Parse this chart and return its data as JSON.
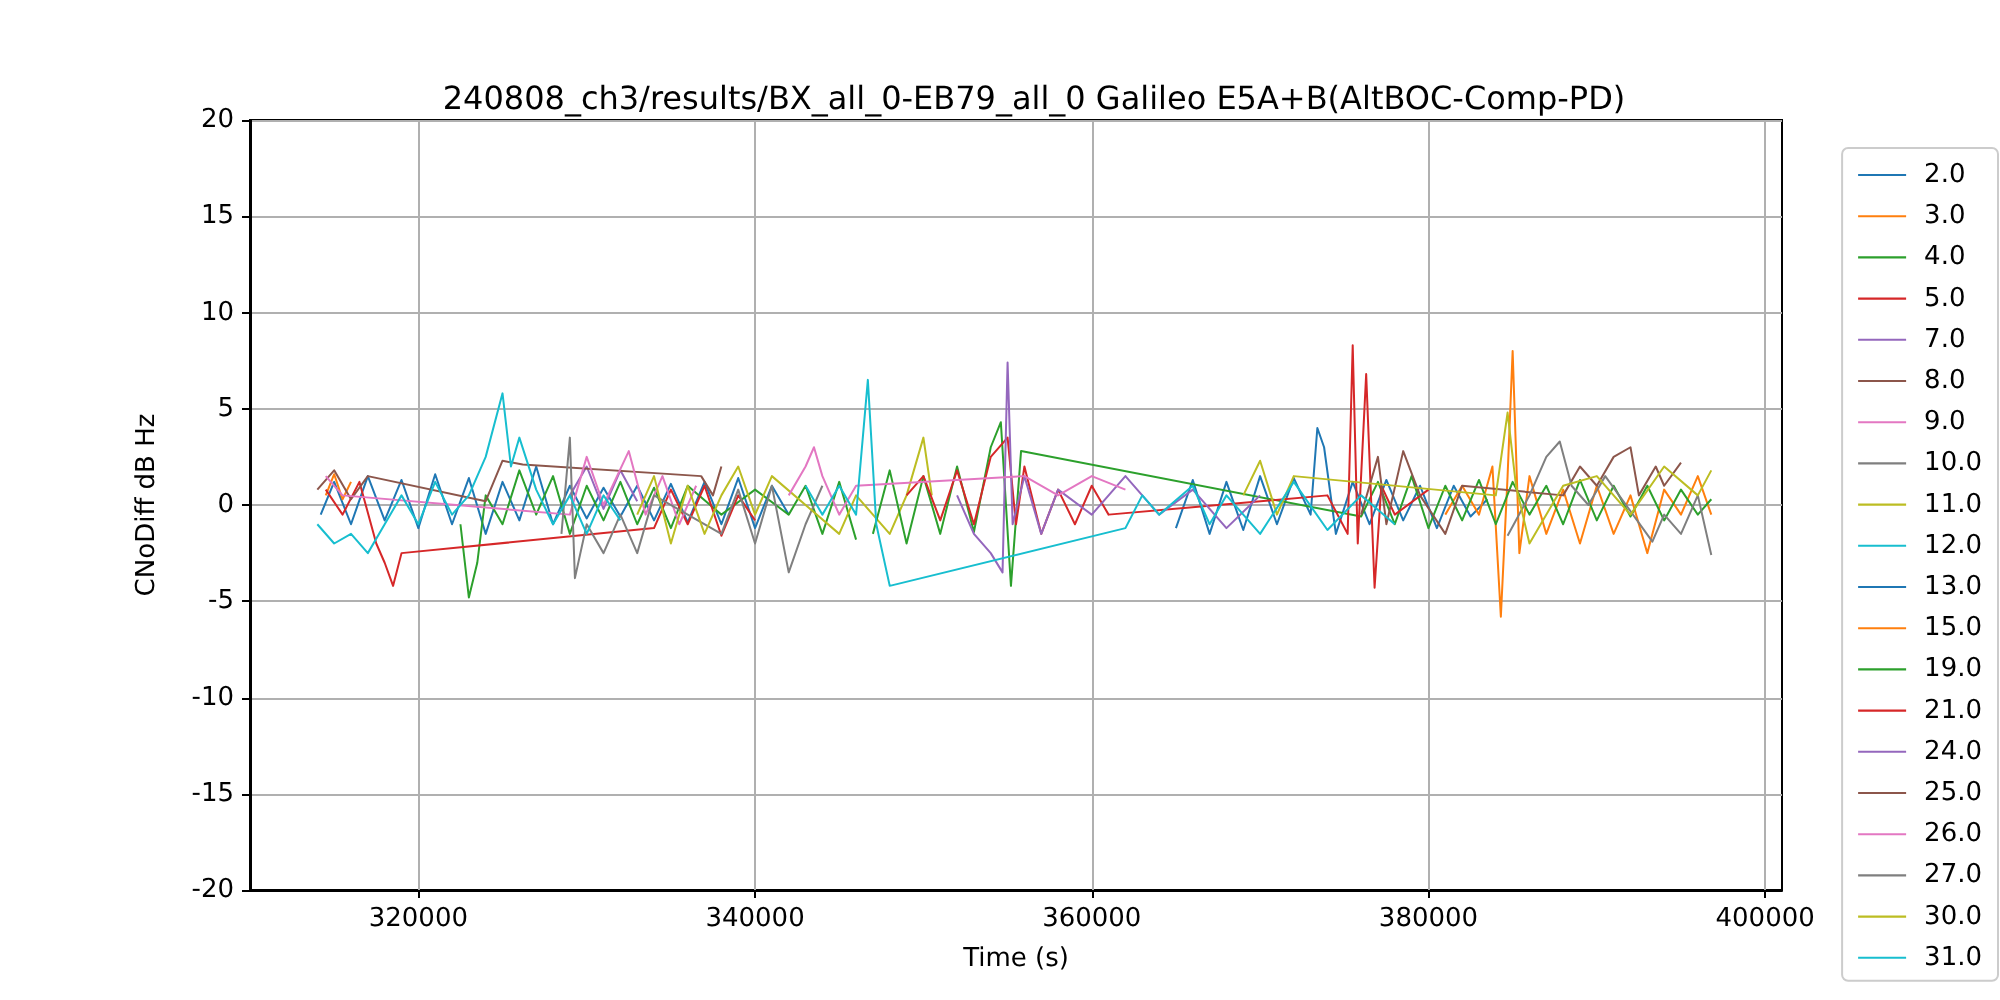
{
  "chart_data": {
    "type": "line",
    "title": "240808_ch3/results/BX_all_0-EB79_all_0 Galileo E5A+B(AltBOC-Comp-PD)",
    "xlabel": "Time (s)",
    "ylabel": "CNoDiff dB Hz",
    "xlim": [
      310000,
      401000
    ],
    "ylim": [
      -20,
      20
    ],
    "xticks": [
      320000,
      340000,
      360000,
      380000,
      400000
    ],
    "yticks": [
      -20,
      -15,
      -10,
      -5,
      0,
      5,
      10,
      15,
      20
    ],
    "grid": true,
    "legend": "right",
    "marker": "none",
    "series": [
      {
        "name": "2.0",
        "color": "#1f77b4",
        "x": [
          314200,
          315000,
          316000,
          317000,
          318000,
          319000,
          320000,
          321000,
          322000,
          323000,
          324000,
          325000,
          326000,
          327000,
          328000,
          329000,
          330000,
          331000,
          332000,
          333000,
          334000,
          335000,
          336000,
          337000,
          338000,
          339000,
          340000,
          341000,
          342000
        ],
        "values": [
          -0.5,
          1.2,
          -1.0,
          1.5,
          -0.8,
          1.3,
          -1.2,
          1.6,
          -1.0,
          1.4,
          -1.5,
          1.2,
          -0.8,
          2.0,
          -1.0,
          1.0,
          -0.7,
          0.9,
          -0.6,
          1.0,
          -0.8,
          1.1,
          -0.9,
          1.2,
          -1.0,
          1.4,
          -1.2,
          1.0,
          -0.5
        ]
      },
      {
        "name": "3.0",
        "color": "#ff7f0e",
        "x": [
          314500,
          315000,
          315500,
          316000
        ],
        "values": [
          0.5,
          1.6,
          0.3,
          1.2
        ]
      },
      {
        "name": "4.0",
        "color": "#2ca02c",
        "x": [
          322500,
          323000,
          323500,
          324000,
          325000,
          326000,
          327000,
          328000,
          329000,
          330000,
          331000,
          332000,
          333000,
          334000,
          335000,
          336000,
          338000,
          340000,
          342000,
          343000,
          344000,
          345000,
          346000
        ],
        "values": [
          -1.0,
          -4.8,
          -3.0,
          0.5,
          -1.0,
          1.8,
          -0.5,
          1.5,
          -1.5,
          1.0,
          -0.8,
          1.2,
          -1.0,
          0.9,
          -1.2,
          1.0,
          -0.5,
          0.8,
          -0.5,
          1.0,
          -1.5,
          1.2,
          -1.8
        ]
      },
      {
        "name": "5.0",
        "color": "#d62728",
        "x": [
          314500,
          315500,
          316500,
          317500,
          318000,
          318500,
          319000,
          334000,
          335000,
          336000,
          337000,
          338000,
          339000,
          340000
        ],
        "values": [
          0.8,
          -0.5,
          1.2,
          -2.0,
          -3.0,
          -4.2,
          -2.5,
          -1.2,
          0.8,
          -1.0,
          1.0,
          -1.6,
          0.5,
          -0.8
        ]
      },
      {
        "name": "7.0",
        "color": "#9467bd",
        "x": [
          329000,
          330000,
          331000,
          332000,
          333000
        ],
        "values": [
          0.5,
          2.0,
          -0.2,
          1.8,
          0.2
        ]
      },
      {
        "name": "8.0",
        "color": "#8c564b",
        "x": [
          314000,
          315000,
          316000,
          317000,
          324000,
          325000,
          326200,
          336800,
          337500,
          338000
        ],
        "values": [
          0.8,
          1.8,
          0.3,
          1.5,
          0.2,
          2.3,
          2.1,
          1.5,
          0.5,
          2.0
        ]
      },
      {
        "name": "9.0",
        "color": "#e377c2",
        "x": [
          314500,
          315500,
          329000,
          330000,
          331000,
          332500,
          333500,
          334500,
          335500,
          336500
        ],
        "values": [
          1.5,
          0.5,
          -0.5,
          2.5,
          0.0,
          2.8,
          -0.5,
          1.5,
          -1.0,
          1.0
        ]
      },
      {
        "name": "10.0",
        "color": "#7f7f7f",
        "x": [
          328500,
          329000,
          329300,
          330000,
          331000,
          332000,
          333000,
          334000,
          338000,
          339000,
          340000,
          341000,
          342000,
          343000,
          344000
        ],
        "values": [
          -1.5,
          3.5,
          -3.8,
          -1.0,
          -2.5,
          -0.5,
          -2.5,
          0.5,
          -1.5,
          0.8,
          -2.0,
          1.0,
          -3.5,
          -1.0,
          1.0
        ]
      },
      {
        "name": "11.0",
        "color": "#bcbd22",
        "x": [
          333000,
          334000,
          335000,
          336000,
          337000,
          338000,
          339000,
          340000,
          341000,
          345000,
          346000,
          348000,
          349000,
          350000,
          350500
        ],
        "values": [
          -0.5,
          1.5,
          -2.0,
          1.0,
          -1.5,
          0.5,
          2.0,
          -0.5,
          1.5,
          -1.5,
          0.5,
          -1.5,
          0.5,
          3.5,
          0.5
        ]
      },
      {
        "name": "12.0",
        "color": "#17becf",
        "x": [
          314000,
          315000,
          316000,
          317000,
          318000,
          319000,
          320000,
          321000,
          322000,
          323000,
          324000,
          325000,
          325500,
          326000,
          327000,
          328000,
          329000,
          330000,
          331000,
          332000
        ],
        "values": [
          -1.0,
          -2.0,
          -1.5,
          -2.5,
          -1.0,
          0.5,
          -1.0,
          1.2,
          -0.5,
          0.5,
          2.5,
          5.8,
          2.0,
          3.5,
          0.8,
          -1.0,
          0.5,
          -1.5,
          0.5,
          -0.8
        ]
      },
      {
        "name": "13.0",
        "color": "#1f77b4",
        "x": [
          365000,
          366000,
          367000,
          368000,
          369000,
          370000,
          371000,
          372000,
          373000,
          373400,
          373800,
          374500,
          375500,
          376500,
          377500,
          378500,
          379500,
          380500,
          381500,
          382500,
          383500
        ],
        "values": [
          -1.2,
          1.3,
          -1.5,
          1.2,
          -1.3,
          1.5,
          -1.0,
          1.4,
          -0.5,
          4.0,
          3.0,
          -1.5,
          1.2,
          -1.0,
          1.3,
          -0.8,
          1.0,
          -1.2,
          1.0,
          -0.6,
          0.3
        ]
      },
      {
        "name": "15.0",
        "color": "#ff7f0e",
        "x": [
          381000,
          382000,
          383000,
          383800,
          384300,
          384700,
          385000,
          385400,
          386000,
          387000,
          388000,
          389000,
          390000,
          391000,
          392000,
          393000,
          394000,
          395000,
          396000,
          396800
        ],
        "values": [
          -0.5,
          1.0,
          -0.5,
          2.0,
          -5.8,
          1.5,
          8.0,
          -2.5,
          1.5,
          -1.5,
          0.8,
          -2.0,
          1.0,
          -1.5,
          0.5,
          -2.5,
          0.8,
          -0.5,
          1.5,
          -0.5
        ]
      },
      {
        "name": "19.0",
        "color": "#2ca02c",
        "x": [
          347000,
          348000,
          349000,
          350000,
          351000,
          352000,
          353000,
          354000,
          354600,
          355200,
          355800,
          376000,
          377000,
          378000,
          379000,
          380000,
          381000,
          382000,
          383000,
          384000,
          385000,
          386000,
          387000,
          388000,
          389000,
          390000,
          391000,
          392000,
          393000,
          394000,
          395000,
          396000,
          396800
        ],
        "values": [
          -1.5,
          1.8,
          -2.0,
          1.5,
          -1.5,
          2.0,
          -1.4,
          3.0,
          4.3,
          -4.2,
          2.8,
          -0.6,
          1.2,
          -1.0,
          1.5,
          -1.2,
          1.0,
          -0.8,
          1.3,
          -1.0,
          1.2,
          -0.5,
          1.0,
          -1.0,
          1.3,
          -0.8,
          1.0,
          -0.6,
          1.0,
          -0.8,
          0.8,
          -0.5,
          0.3
        ]
      },
      {
        "name": "21.0",
        "color": "#d62728",
        "x": [
          349000,
          350000,
          351000,
          352000,
          353000,
          354000,
          355000,
          355500,
          356000,
          357000,
          358000,
          359000,
          360000,
          361000,
          374000,
          375200,
          375500,
          375800,
          376300,
          376800,
          377200,
          378000,
          380000
        ],
        "values": [
          0.5,
          1.5,
          -0.8,
          1.8,
          -1.0,
          2.5,
          3.5,
          -1.0,
          2.0,
          -1.5,
          0.8,
          -1.0,
          1.0,
          -0.5,
          0.5,
          -1.5,
          8.3,
          -2.0,
          6.8,
          -4.3,
          1.0,
          -0.5,
          0.8
        ]
      },
      {
        "name": "24.0",
        "color": "#9467bd",
        "x": [
          352000,
          353000,
          354000,
          354700,
          355000,
          355300,
          356000,
          357000,
          358000,
          360000,
          362000,
          364000,
          366000,
          368000,
          370000
        ],
        "values": [
          0.5,
          -1.5,
          -2.5,
          -3.5,
          7.4,
          -1.0,
          1.5,
          -1.5,
          0.8,
          -0.5,
          1.5,
          -0.5,
          0.8,
          -1.2,
          0.5
        ]
      },
      {
        "name": "25.0",
        "color": "#8c564b",
        "x": [
          376000,
          377000,
          377500,
          378500,
          379500,
          381000,
          382000,
          388000,
          389000,
          390000,
          391000,
          392000,
          392500,
          393500,
          394000,
          395000
        ],
        "values": [
          -0.5,
          2.5,
          -1.0,
          2.8,
          0.5,
          -1.5,
          1.0,
          0.5,
          2.0,
          1.0,
          2.5,
          3.0,
          0.5,
          2.0,
          1.0,
          2.2
        ]
      },
      {
        "name": "26.0",
        "color": "#e377c2",
        "x": [
          342000,
          343000,
          343500,
          344000,
          345000,
          346000,
          356000,
          358000,
          360000,
          362000
        ],
        "values": [
          0.5,
          2.0,
          3.0,
          1.5,
          -0.5,
          1.0,
          1.5,
          0.5,
          1.5,
          0.8
        ]
      },
      {
        "name": "27.0",
        "color": "#7f7f7f",
        "x": [
          384700,
          386000,
          387000,
          387800,
          388500,
          389500,
          390500,
          393300,
          394000,
          395000,
          396000,
          396800
        ],
        "values": [
          -1.6,
          0.5,
          2.5,
          3.3,
          1.0,
          0.0,
          1.5,
          -1.9,
          -0.5,
          -1.5,
          0.5,
          -2.6
        ]
      },
      {
        "name": "30.0",
        "color": "#bcbd22",
        "x": [
          369000,
          370000,
          371000,
          372000,
          384000,
          384700,
          385200,
          386000,
          388000,
          390000,
          392000,
          394000,
          396000,
          396800
        ],
        "values": [
          0.5,
          2.3,
          -0.5,
          1.5,
          0.5,
          4.8,
          1.0,
          -2.0,
          1.0,
          1.5,
          -0.5,
          2.0,
          0.5,
          1.8
        ]
      },
      {
        "name": "31.0",
        "color": "#17becf",
        "x": [
          343000,
          344000,
          345000,
          346000,
          346700,
          347200,
          348000,
          362000,
          363000,
          364000,
          366000,
          367000,
          368000,
          370000,
          372000,
          374000,
          376000,
          378000
        ],
        "values": [
          1.0,
          -0.5,
          1.0,
          -0.5,
          6.5,
          -1.0,
          -4.2,
          -1.2,
          0.5,
          -0.5,
          1.0,
          -1.0,
          0.5,
          -1.5,
          1.2,
          -1.3,
          0.5,
          -1.0
        ]
      }
    ]
  }
}
